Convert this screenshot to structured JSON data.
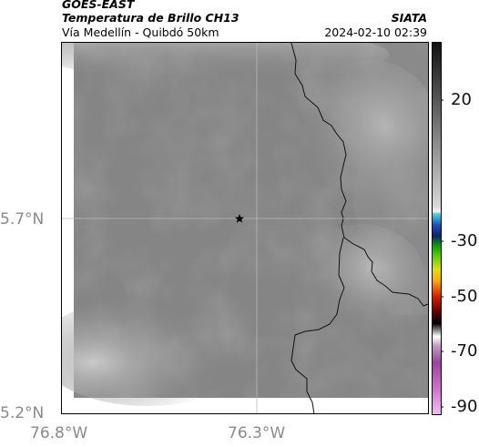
{
  "header": {
    "satellite": "GOES-EAST",
    "product": "Temperatura de Brillo CH13",
    "region": "Vía Medellín - Quibdó 50km",
    "brand": "SIATA",
    "timestamp": "2024-02-10 02:39"
  },
  "map": {
    "lat_ticks": [
      "5.7°N",
      "5.2°N"
    ],
    "lon_ticks": [
      "76.8°W",
      "76.3°W"
    ],
    "marker": "star-icon"
  },
  "colorbar": {
    "ticks": [
      "20",
      "-30",
      "-50",
      "-70",
      "-90"
    ]
  }
}
